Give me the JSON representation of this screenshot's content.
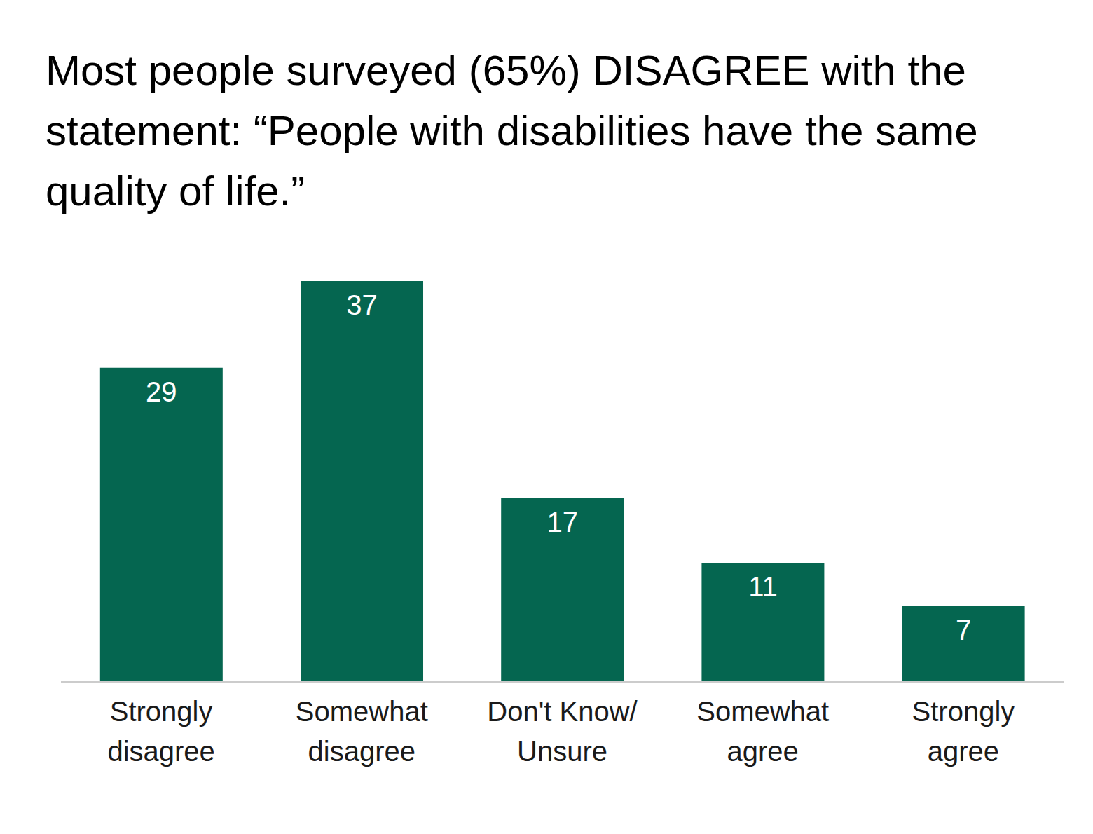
{
  "chart_data": {
    "type": "bar",
    "title": "Most people surveyed (65%) DISAGREE with the statement: “People with disabilities have the same quality of life.”",
    "categories": [
      "Strongly disagree",
      "Somewhat disagree",
      "Don't Know/ Unsure",
      "Somewhat agree",
      "Strongly agree"
    ],
    "values": [
      29,
      37,
      17,
      11,
      7
    ],
    "color": "#056650",
    "ylim": [
      0,
      37
    ],
    "grid": false,
    "data_labels": true,
    "tick_labels": "x"
  }
}
